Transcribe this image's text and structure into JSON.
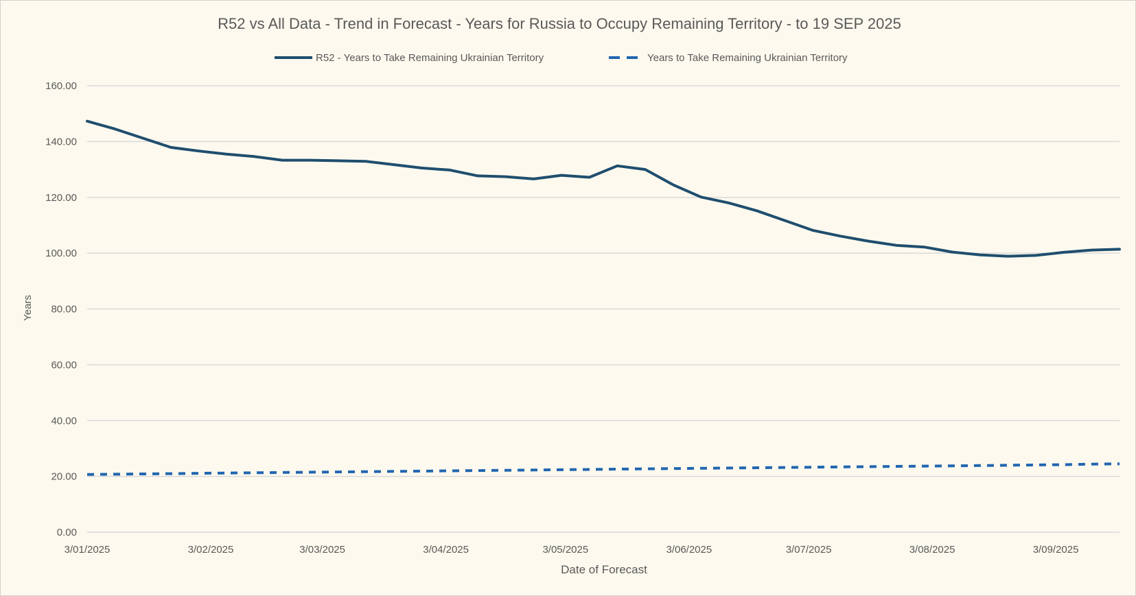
{
  "chart_data": {
    "type": "line",
    "title": "R52 vs All Data  - Trend in Forecast - Years for Russia to Occupy Remaining Territory - to 19 SEP 2025",
    "xlabel": "Date of Forecast",
    "ylabel": "Years",
    "ylim": [
      0,
      160
    ],
    "y_ticks": [
      "0.00",
      "20.00",
      "40.00",
      "60.00",
      "80.00",
      "100.00",
      "120.00",
      "140.00",
      "160.00"
    ],
    "x_range": [
      "2025-01-03",
      "2025-09-19"
    ],
    "x_ticks": [
      {
        "date": "2025-01-03",
        "label": "3/01/2025"
      },
      {
        "date": "2025-02-03",
        "label": "3/02/2025"
      },
      {
        "date": "2025-03-03",
        "label": "3/03/2025"
      },
      {
        "date": "2025-04-03",
        "label": "3/04/2025"
      },
      {
        "date": "2025-05-03",
        "label": "3/05/2025"
      },
      {
        "date": "2025-06-03",
        "label": "3/06/2025"
      },
      {
        "date": "2025-07-03",
        "label": "3/07/2025"
      },
      {
        "date": "2025-08-03",
        "label": "3/08/2025"
      },
      {
        "date": "2025-09-03",
        "label": "3/09/2025"
      }
    ],
    "grid": true,
    "legend_placement": "top",
    "x": [
      "2025-01-03",
      "2025-01-10",
      "2025-01-17",
      "2025-01-24",
      "2025-01-31",
      "2025-02-07",
      "2025-02-14",
      "2025-02-21",
      "2025-02-28",
      "2025-03-07",
      "2025-03-14",
      "2025-03-21",
      "2025-03-28",
      "2025-04-04",
      "2025-04-11",
      "2025-04-18",
      "2025-04-25",
      "2025-05-02",
      "2025-05-09",
      "2025-05-16",
      "2025-05-23",
      "2025-05-30",
      "2025-06-06",
      "2025-06-13",
      "2025-06-20",
      "2025-06-27",
      "2025-07-04",
      "2025-07-11",
      "2025-07-18",
      "2025-07-25",
      "2025-08-01",
      "2025-08-08",
      "2025-08-15",
      "2025-08-22",
      "2025-08-29",
      "2025-09-05",
      "2025-09-12",
      "2025-09-19"
    ],
    "series": [
      {
        "name": "R52 - Years to Take Remaining Ukrainian Territory",
        "color": "#1f4e6e",
        "style": "solid",
        "values": [
          147.3,
          144.5,
          141.2,
          137.9,
          136.6,
          135.5,
          134.6,
          133.3,
          133.3,
          133.1,
          132.9,
          131.7,
          130.5,
          129.8,
          127.7,
          127.4,
          126.6,
          127.9,
          127.2,
          131.3,
          130.0,
          124.5,
          120.1,
          118.0,
          115.2,
          111.7,
          108.2,
          106.1,
          104.3,
          102.8,
          102.2,
          100.4,
          99.4,
          98.9,
          99.2,
          100.3,
          101.1,
          101.4
        ]
      },
      {
        "name": "Years to Take Remaining Ukrainian Territory",
        "color": "#2166b0",
        "style": "dashed",
        "values": [
          20.7,
          20.8,
          20.9,
          21.0,
          21.1,
          21.2,
          21.3,
          21.4,
          21.5,
          21.6,
          21.7,
          21.8,
          21.9,
          22.0,
          22.1,
          22.2,
          22.3,
          22.4,
          22.5,
          22.6,
          22.7,
          22.8,
          22.9,
          23.0,
          23.1,
          23.2,
          23.3,
          23.4,
          23.5,
          23.6,
          23.7,
          23.8,
          23.9,
          24.0,
          24.1,
          24.2,
          24.4,
          24.5
        ]
      }
    ]
  }
}
